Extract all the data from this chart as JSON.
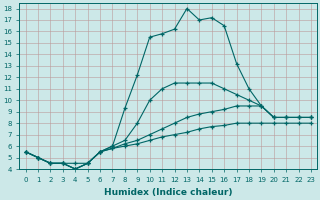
{
  "xlabel": "Humidex (Indice chaleur)",
  "bg_color": "#cce8e8",
  "grid_color": "#bb9999",
  "line_color": "#006666",
  "xlim": [
    -0.5,
    23.5
  ],
  "ylim": [
    4,
    18.5
  ],
  "xticks": [
    0,
    1,
    2,
    3,
    4,
    5,
    6,
    7,
    8,
    9,
    10,
    11,
    12,
    13,
    14,
    15,
    16,
    17,
    18,
    19,
    20,
    21,
    22,
    23
  ],
  "yticks": [
    4,
    5,
    6,
    7,
    8,
    9,
    10,
    11,
    12,
    13,
    14,
    15,
    16,
    17,
    18
  ],
  "lines": [
    {
      "x": [
        0,
        1,
        2,
        3,
        4,
        5,
        6,
        7,
        8,
        9,
        10,
        11,
        12,
        13,
        14,
        15,
        16,
        17,
        18,
        19,
        20,
        21,
        22,
        23
      ],
      "y": [
        5.5,
        5.0,
        4.5,
        4.5,
        4.5,
        4.5,
        5.5,
        5.8,
        6.0,
        6.2,
        6.5,
        6.8,
        7.0,
        7.2,
        7.5,
        7.7,
        7.8,
        8.0,
        8.0,
        8.0,
        8.0,
        8.0,
        8.0,
        8.0
      ]
    },
    {
      "x": [
        0,
        1,
        2,
        3,
        4,
        5,
        6,
        7,
        8,
        9,
        10,
        11,
        12,
        13,
        14,
        15,
        16,
        17,
        18,
        19,
        20,
        21,
        22,
        23
      ],
      "y": [
        5.5,
        5.0,
        4.5,
        4.5,
        4.0,
        4.5,
        5.5,
        5.8,
        6.2,
        6.5,
        7.0,
        7.5,
        8.0,
        8.5,
        8.8,
        9.0,
        9.2,
        9.5,
        9.5,
        9.5,
        8.5,
        8.5,
        8.5,
        8.5
      ]
    },
    {
      "x": [
        0,
        1,
        2,
        3,
        4,
        5,
        6,
        7,
        8,
        9,
        10,
        11,
        12,
        13,
        14,
        15,
        16,
        17,
        18,
        19,
        20,
        21,
        22,
        23
      ],
      "y": [
        5.5,
        5.0,
        4.5,
        4.5,
        4.0,
        4.5,
        5.5,
        6.0,
        6.5,
        8.0,
        10.0,
        11.0,
        11.5,
        11.5,
        11.5,
        11.5,
        11.0,
        10.5,
        10.0,
        9.5,
        8.5,
        8.5,
        8.5,
        8.5
      ]
    },
    {
      "x": [
        0,
        1,
        2,
        3,
        4,
        5,
        6,
        7,
        8,
        9,
        10,
        11,
        12,
        13,
        14,
        15,
        16,
        17,
        18,
        19,
        20,
        21,
        22,
        23
      ],
      "y": [
        5.5,
        5.0,
        4.5,
        4.5,
        4.0,
        4.5,
        5.5,
        6.0,
        9.3,
        12.2,
        15.5,
        15.8,
        16.2,
        18.0,
        17.0,
        17.2,
        16.5,
        13.2,
        11.0,
        9.5,
        8.5,
        8.5,
        8.5,
        8.5
      ]
    }
  ]
}
